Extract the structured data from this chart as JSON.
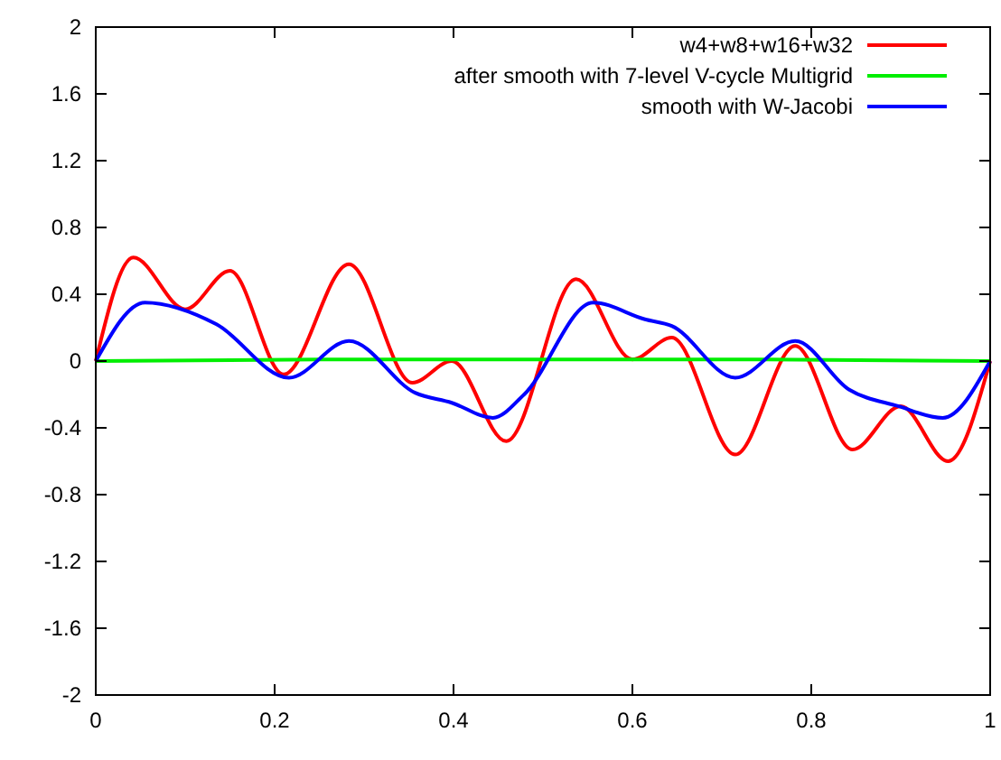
{
  "chart_data": {
    "type": "line",
    "xlim": [
      0,
      1
    ],
    "ylim": [
      -2,
      2
    ],
    "xticks": [
      0,
      0.2,
      0.4,
      0.6,
      0.8,
      1
    ],
    "yticks": [
      -2,
      -1.6,
      -1.2,
      -0.8,
      -0.4,
      0,
      0.4,
      0.8,
      1.2,
      1.6,
      2
    ],
    "grid": false,
    "legend": "top right",
    "marker": "none",
    "line_style": "solid",
    "series": [
      {
        "name": "w4+w8+w16+w32",
        "color": "#ff0000",
        "x": [
          0,
          0.042,
          0.1,
          0.15,
          0.21,
          0.283,
          0.354,
          0.398,
          0.459,
          0.537,
          0.6,
          0.644,
          0.715,
          0.782,
          0.846,
          0.9,
          0.953,
          1
        ],
        "values": [
          0,
          0.62,
          0.31,
          0.54,
          -0.08,
          0.58,
          -0.13,
          0,
          -0.48,
          0.49,
          0.01,
          0.14,
          -0.56,
          0.09,
          -0.53,
          -0.27,
          -0.6,
          0
        ]
      },
      {
        "name": "after smooth with 7-level V-cycle Multigrid",
        "color": "#00ee00",
        "x": [
          0,
          0.25,
          0.5,
          0.75,
          1
        ],
        "values": [
          0,
          0.01,
          0.01,
          0.01,
          0
        ]
      },
      {
        "name": "smooth with W-Jacobi",
        "color": "#0000ff",
        "x": [
          0,
          0.055,
          0.135,
          0.216,
          0.283,
          0.357,
          0.398,
          0.444,
          0.479,
          0.556,
          0.614,
          0.644,
          0.715,
          0.782,
          0.842,
          0.897,
          0.947,
          1
        ],
        "values": [
          0,
          0.35,
          0.22,
          -0.1,
          0.12,
          -0.19,
          -0.25,
          -0.34,
          -0.2,
          0.35,
          0.25,
          0.21,
          -0.1,
          0.12,
          -0.17,
          -0.27,
          -0.34,
          0
        ]
      }
    ]
  }
}
